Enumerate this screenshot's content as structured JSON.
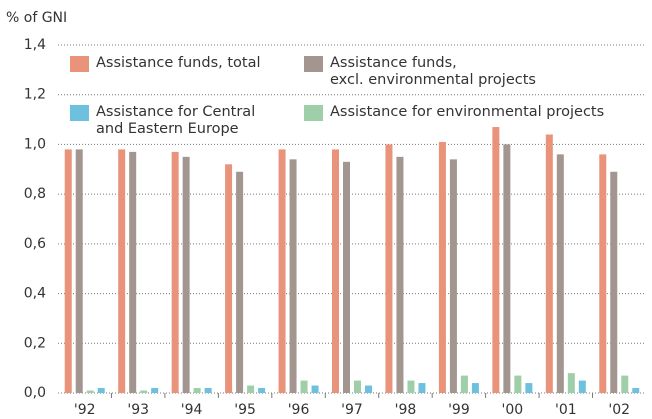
{
  "chart_data": {
    "type": "bar",
    "ylabel": "% of GNI",
    "categories": [
      "'92",
      "'93",
      "'94",
      "'95",
      "'96",
      "'97",
      "'98",
      "'99",
      "'00",
      "'01",
      "'02"
    ],
    "series": [
      {
        "name": "Assistance funds, total",
        "color": "#e8937a",
        "values": [
          0.98,
          0.98,
          0.97,
          0.92,
          0.98,
          0.98,
          1.0,
          1.01,
          1.07,
          1.04,
          0.96
        ]
      },
      {
        "name": "Assistance funds,\nexcl. environmental projects",
        "color": "#a3958f",
        "values": [
          0.98,
          0.97,
          0.95,
          0.89,
          0.94,
          0.93,
          0.95,
          0.94,
          1.0,
          0.96,
          0.89
        ]
      },
      {
        "name": "Assistance for environmental projects",
        "color": "#9ecfa9",
        "values": [
          0.01,
          0.01,
          0.02,
          0.03,
          0.05,
          0.05,
          0.05,
          0.07,
          0.07,
          0.08,
          0.07
        ]
      },
      {
        "name": "Assistance for Central\nand Eastern Europe",
        "color": "#6ec1de",
        "values": [
          0.02,
          0.02,
          0.02,
          0.02,
          0.03,
          0.03,
          0.04,
          0.04,
          0.04,
          0.05,
          0.02
        ]
      }
    ],
    "ylim": [
      0,
      1.4
    ],
    "yticks": [
      {
        "value": 0,
        "label": "0,0"
      },
      {
        "value": 0.2,
        "label": "0,2"
      },
      {
        "value": 0.4,
        "label": "0,4"
      },
      {
        "value": 0.6,
        "label": "0,6"
      },
      {
        "value": 0.8,
        "label": "0,8"
      },
      {
        "value": 1.0,
        "label": "1,0"
      },
      {
        "value": 1.2,
        "label": "1,2"
      },
      {
        "value": 1.4,
        "label": "1,4"
      }
    ],
    "grid": true
  }
}
